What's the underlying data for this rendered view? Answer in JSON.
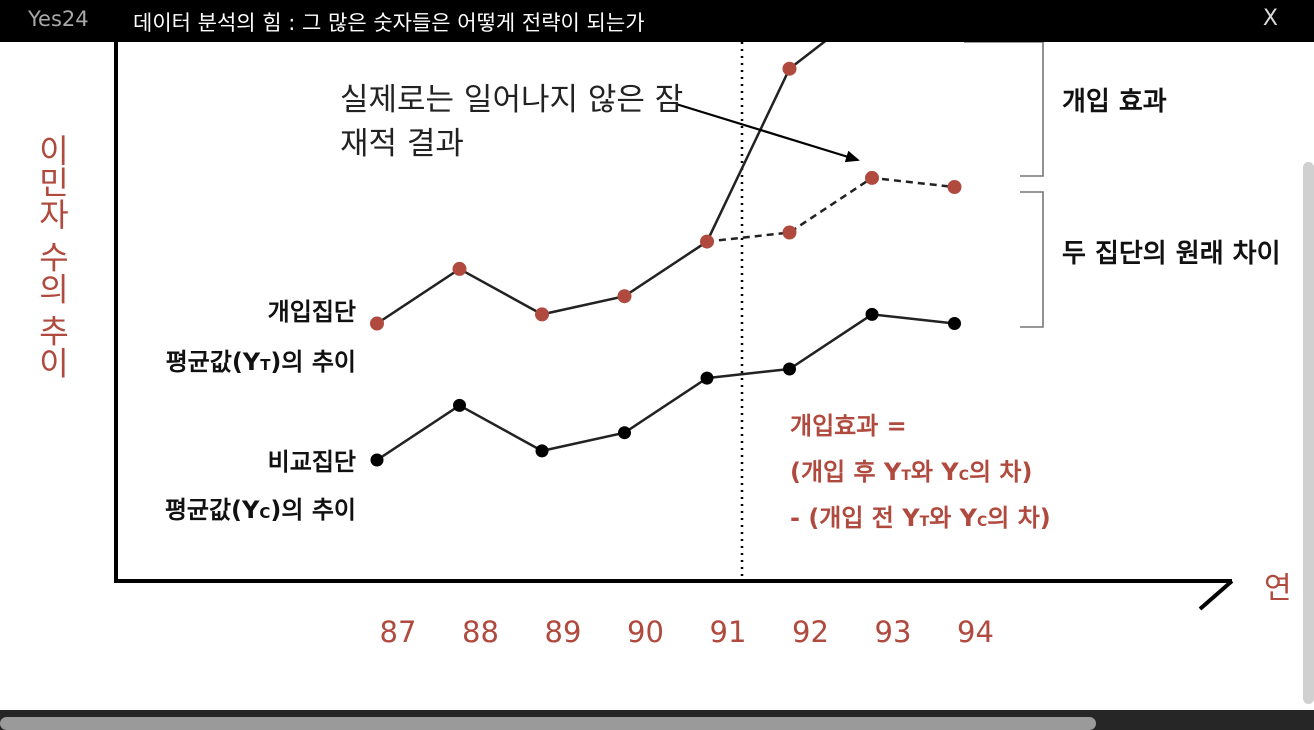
{
  "window": {
    "app_name": "Yes24",
    "book_title": "데이터 분석의 힘 : 그 많은 숫자들은 어떻게 전략이 되는가",
    "close_label": "X"
  },
  "chart_data": {
    "type": "line",
    "x": [
      87,
      88,
      89,
      90,
      91,
      92,
      93,
      94
    ],
    "xticks": [
      "87",
      "88",
      "89",
      "90",
      "91",
      "92",
      "93",
      "94"
    ],
    "xlabel": "연",
    "ylabel": "이민자 수의 추이",
    "intervention_year": 91,
    "series": [
      {
        "name": "개입집단 평균값(YT)의 추이",
        "x": [
          87,
          88,
          89,
          90,
          91,
          92,
          93
        ],
        "values": [
          2.6,
          3.2,
          2.7,
          2.9,
          3.5,
          5.4,
          6.1
        ]
      },
      {
        "name": "실제로는 일어나지 않은 잠재적 결과",
        "x": [
          91,
          92,
          93,
          94
        ],
        "values": [
          3.5,
          3.6,
          4.2,
          4.1
        ]
      },
      {
        "name": "비교집단 평균값(YC)의 추이",
        "x": [
          87,
          88,
          89,
          90,
          91,
          92,
          93,
          94
        ],
        "values": [
          1.1,
          1.7,
          1.2,
          1.4,
          2.0,
          2.1,
          2.7,
          2.6
        ]
      }
    ],
    "colors": {
      "treatment": "#b04a3e",
      "comparison": "#000000",
      "axis_text": "#b04a3e",
      "annotation": "#b04a3e"
    }
  },
  "labels": {
    "treatment_line1": "개입집단",
    "treatment_line2_pre": "평균값(Y",
    "treatment_sub": "T",
    "treatment_line2_post": ")의 추이",
    "comparison_line1": "비교집단",
    "comparison_line2_pre": "평균값(Y",
    "comparison_sub": "C",
    "comparison_line2_post": ")의 추이",
    "counterfactual_line1": "실제로는 일어나지 않은 잠",
    "counterfactual_line2": "재적 결과",
    "effect_bracket": "개입 효과",
    "baseline_bracket": "두 집단의 원래 차이",
    "formula_line1": "개입효과 =",
    "formula_line2_a": "(개입 후 Y",
    "formula_line2_b": "와 Y",
    "formula_line2_c": "의 차)",
    "formula_line3_a": "- (개입 전 Y",
    "formula_line3_b": "와 Y",
    "formula_line3_c": "의 차)",
    "sub_t": "T",
    "sub_c": "C"
  }
}
